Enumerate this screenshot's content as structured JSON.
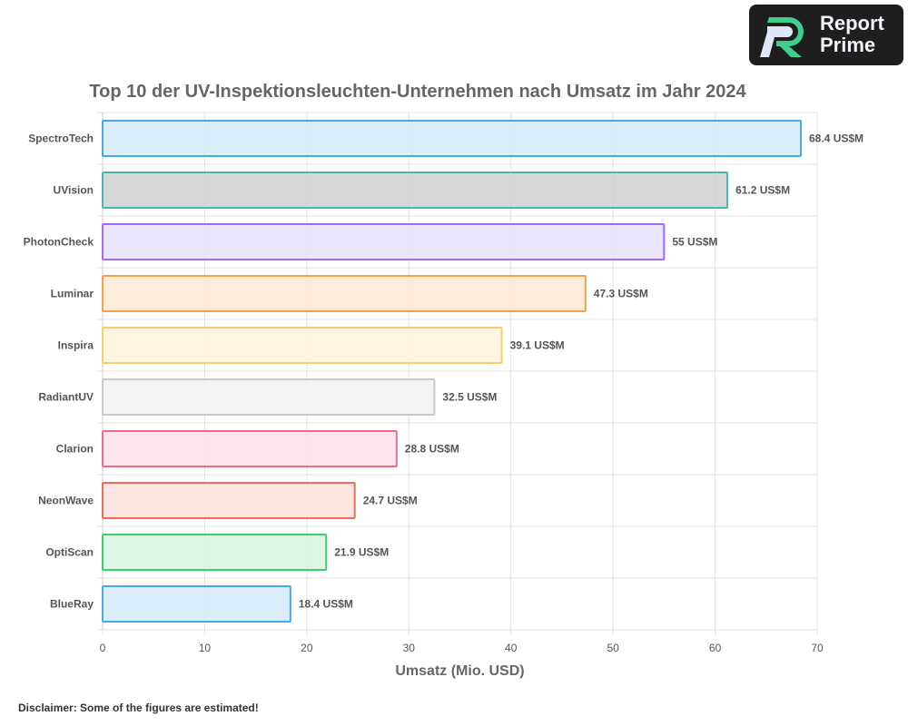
{
  "logo": {
    "line1": "Report",
    "line2": "Prime"
  },
  "disclaimer": "Disclaimer: Some of the figures are estimated!",
  "chart_data": {
    "type": "bar",
    "orientation": "horizontal",
    "title": "Top 10 der UV-Inspektionsleuchten-Unternehmen nach Umsatz im Jahr 2024",
    "xlabel": "Umsatz (Mio. USD)",
    "ylabel": "",
    "xlim": [
      0,
      70
    ],
    "xticks": [
      0,
      10,
      20,
      30,
      40,
      50,
      60,
      70
    ],
    "grid": true,
    "unit_suffix": " US$M",
    "categories": [
      "SpectroTech",
      "UVision",
      "PhotonCheck",
      "Luminar",
      "Inspira",
      "RadiantUV",
      "Clarion",
      "NeonWave",
      "OptiScan",
      "BlueRay"
    ],
    "values": [
      68.4,
      61.2,
      55,
      47.3,
      39.1,
      32.5,
      28.8,
      24.7,
      21.9,
      18.4
    ],
    "data_labels": [
      "68.4 US$M",
      "61.2 US$M",
      "55 US$M",
      "47.3 US$M",
      "39.1 US$M",
      "32.5 US$M",
      "28.8 US$M",
      "24.7 US$M",
      "21.9 US$M",
      "18.4 US$M"
    ],
    "border_colors": [
      "#4aa8e8",
      "#4db6ac",
      "#a06cf5",
      "#f5a04a",
      "#f7cf6a",
      "#c9c9c9",
      "#f06b8a",
      "#f36b5a",
      "#3ccf72",
      "#4aa8e8"
    ],
    "fill_colors": [
      "#d5eaf9",
      "#cfd0cf",
      "#e8dffd",
      "#fde8d6",
      "#fef3db",
      "#f2f2f2",
      "#fde0e7",
      "#fde0dc",
      "#d7f5e1",
      "#d5eaf9"
    ]
  }
}
